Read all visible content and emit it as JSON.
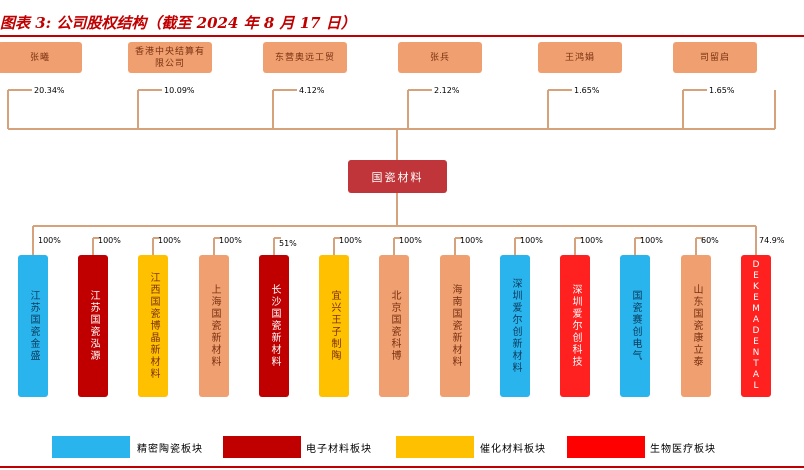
{
  "title": "图表 3: 公司股权结构（截至 2024 年 8 月 17 日）",
  "shareholders": [
    {
      "name": "张曦",
      "pct": "20.34%"
    },
    {
      "name": "香港中央结算有限公司",
      "pct": "10.09%"
    },
    {
      "name": "东营奥远工贸",
      "pct": "4.12%"
    },
    {
      "name": "张兵",
      "pct": "2.12%"
    },
    {
      "name": "王鸿娟",
      "pct": "1.65%"
    },
    {
      "name": "司留启",
      "pct": "1.65%"
    }
  ],
  "company": "国瓷材料",
  "subsidiaries": [
    {
      "name": "江苏国瓷金盛",
      "pct": "100%",
      "segment": "precision"
    },
    {
      "name": "江苏国瓷泓源",
      "pct": "100%",
      "segment": "electronic"
    },
    {
      "name": "江西国瓷博晶新材料",
      "pct": "100%",
      "segment": "catalyst"
    },
    {
      "name": "上海国瓷新材料",
      "pct": "100%",
      "segment": "orange"
    },
    {
      "name": "长沙国瓷新材料",
      "pct": "51%",
      "segment": "electronic"
    },
    {
      "name": "宜兴王子制陶",
      "pct": "100%",
      "segment": "catalyst"
    },
    {
      "name": "北京国瓷科博",
      "pct": "100%",
      "segment": "orange"
    },
    {
      "name": "海南国瓷新材料",
      "pct": "100%",
      "segment": "orange"
    },
    {
      "name": "深圳爱尔创新材料",
      "pct": "100%",
      "segment": "precision"
    },
    {
      "name": "深圳爱尔创科技",
      "pct": "100%",
      "segment": "bio"
    },
    {
      "name": "国瓷赛创电气",
      "pct": "100%",
      "segment": "precision"
    },
    {
      "name": "山东国瓷康立泰",
      "pct": "60%",
      "segment": "orange"
    },
    {
      "name": "DEKEMADENTAL",
      "pct": "74.9%",
      "segment": "bio"
    }
  ],
  "legend": [
    {
      "label": "精密陶瓷板块",
      "color": "#2ab4ee"
    },
    {
      "label": "电子材料板块",
      "color": "#c00000"
    },
    {
      "label": "催化材料板块",
      "color": "#ffc000"
    },
    {
      "label": "生物医疗板块",
      "color": "#ff0000"
    }
  ],
  "colors": {
    "accent": "#c00000",
    "shareholder_box": "#f0a070",
    "connector": "#d6a27c",
    "center_box": "#c0353a",
    "precision": "#2ab4ee",
    "electronic": "#c00000",
    "catalyst": "#ffc000",
    "bio": "#ff2020",
    "orange": "#f0a070"
  }
}
